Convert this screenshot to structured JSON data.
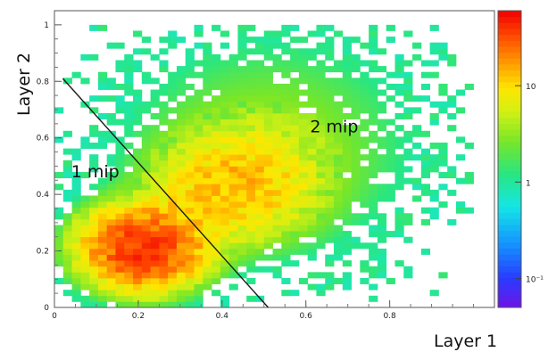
{
  "chart_data": {
    "type": "heatmap",
    "title": "",
    "xlabel": "Layer 1",
    "ylabel": "Layer 2",
    "xlim": [
      0,
      1.05
    ],
    "ylim": [
      0,
      1.05
    ],
    "x_ticks": [
      "0",
      "0.2",
      "0.4",
      "0.6",
      "0.8"
    ],
    "y_ticks": [
      "0",
      "0.2",
      "0.4",
      "0.6",
      "0.8",
      "1"
    ],
    "color_scale": {
      "scale": "log",
      "range": [
        0.05,
        60
      ],
      "ticks": [
        "10⁻¹",
        "1",
        "10"
      ]
    },
    "clusters": [
      {
        "label": "1 mip",
        "center": [
          0.21,
          0.21
        ],
        "peak_counts": 40
      },
      {
        "label": "2 mip",
        "center": [
          0.43,
          0.43
        ],
        "peak_counts": 12
      }
    ],
    "separator_line": {
      "from": [
        0.02,
        0.81
      ],
      "to": [
        0.51,
        0.0
      ]
    },
    "annotations": [
      {
        "text": "1 mip",
        "x": 0.04,
        "y": 0.46
      },
      {
        "text": "2 mip",
        "x": 0.61,
        "y": 0.62
      }
    ],
    "grid": false,
    "legend": "none"
  }
}
